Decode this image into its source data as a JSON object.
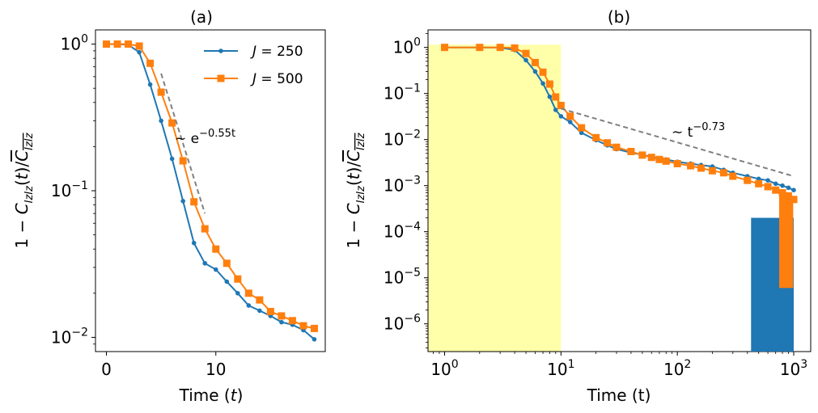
{
  "chart_data": [
    {
      "type": "line",
      "title": "(a)",
      "xlabel": "Time (t)",
      "ylabel": "1 − C_IzIz(t)/C̄_IzIz",
      "xlim": [
        -1,
        20
      ],
      "ylim": [
        0.008,
        1.25
      ],
      "yscale": "log",
      "xticks": [
        0,
        10
      ],
      "xtick_labels": [
        "0",
        "10"
      ],
      "yticks": [
        0.01,
        0.1,
        1
      ],
      "ytick_labels": [
        "10",
        "10",
        "10"
      ],
      "ytick_exponents": [
        "−2",
        "−1",
        "0"
      ],
      "legend_position": "top-right",
      "series": [
        {
          "name": "J = 250",
          "color": "#1f77b4",
          "marker": "circle",
          "x": [
            0,
            1,
            2,
            3,
            4,
            5,
            6,
            7,
            8,
            9,
            10,
            11,
            12,
            13,
            14,
            15,
            16,
            17,
            18,
            19
          ],
          "y": [
            1.0,
            1.0,
            0.99,
            0.88,
            0.53,
            0.3,
            0.165,
            0.085,
            0.044,
            0.032,
            0.029,
            0.024,
            0.02,
            0.0165,
            0.0152,
            0.014,
            0.0127,
            0.0122,
            0.0112,
            0.0097
          ]
        },
        {
          "name": "J = 500",
          "color": "#ff7f0e",
          "marker": "square",
          "x": [
            0,
            1,
            2,
            3,
            4,
            5,
            6,
            7,
            8,
            9,
            10,
            11,
            12,
            13,
            14,
            15,
            16,
            17,
            18,
            19
          ],
          "y": [
            1.0,
            1.0,
            1.0,
            0.97,
            0.74,
            0.47,
            0.29,
            0.16,
            0.084,
            0.055,
            0.04,
            0.032,
            0.025,
            0.02,
            0.018,
            0.015,
            0.014,
            0.013,
            0.012,
            0.0115
          ]
        }
      ],
      "fit_line": {
        "color": "#808080",
        "x": [
          5,
          9
        ],
        "y": [
          0.63,
          0.07
        ]
      },
      "annotation": "∼ e",
      "annotation_exp": "−0.55t"
    },
    {
      "type": "line",
      "title": "(b)",
      "xlabel": "Time (t)",
      "ylabel": "1 − C_IzIz(t)/C̄_IzIz",
      "xscale": "log",
      "yscale": "log",
      "xlim": [
        0.72,
        1400
      ],
      "ylim": [
        2.5e-07,
        2.4
      ],
      "xticks": [
        1,
        10,
        100,
        1000
      ],
      "xtick_labels": [
        "10",
        "10",
        "10",
        "10"
      ],
      "xtick_exponents": [
        "0",
        "1",
        "2",
        "3"
      ],
      "yticks": [
        1e-06,
        1e-05,
        0.0001,
        0.001,
        0.01,
        0.1,
        1
      ],
      "ytick_labels": [
        "10",
        "10",
        "10",
        "10",
        "10",
        "10",
        "10"
      ],
      "ytick_exponents": [
        "−6",
        "−5",
        "−4",
        "−3",
        "−2",
        "−1",
        "0"
      ],
      "shaded_region": {
        "x": [
          0.72,
          10
        ],
        "y": [
          2.5e-07,
          1.15
        ],
        "color": "#ffffaa"
      },
      "series": [
        {
          "name": "J = 250",
          "color": "#1f77b4",
          "marker": "circle",
          "x": [
            1,
            2,
            3,
            4,
            5,
            6,
            7,
            8,
            9,
            10,
            12,
            15,
            20,
            25,
            30,
            40,
            50,
            60,
            70,
            80,
            100,
            130,
            160,
            200,
            250,
            300,
            400,
            500,
            600,
            700,
            800,
            900,
            1000
          ],
          "y": [
            1.0,
            1.0,
            0.99,
            0.88,
            0.53,
            0.3,
            0.165,
            0.085,
            0.044,
            0.032,
            0.024,
            0.014,
            0.0097,
            0.0075,
            0.0062,
            0.0052,
            0.0047,
            0.0042,
            0.0039,
            0.0037,
            0.0033,
            0.003,
            0.0028,
            0.0026,
            0.0022,
            0.0019,
            0.0016,
            0.0014,
            0.0013,
            0.0011,
            0.001,
            0.0009,
            0.0008
          ]
        },
        {
          "name": "J = 500",
          "color": "#ff7f0e",
          "marker": "square",
          "x": [
            1,
            2,
            3,
            4,
            5,
            6,
            7,
            8,
            9,
            10,
            12,
            15,
            20,
            25,
            30,
            40,
            50,
            60,
            70,
            80,
            100,
            130,
            160,
            200,
            250,
            300,
            400,
            500,
            600,
            700,
            800,
            900,
            1000
          ],
          "y": [
            1.0,
            1.0,
            1.0,
            0.97,
            0.74,
            0.47,
            0.29,
            0.16,
            0.084,
            0.055,
            0.032,
            0.018,
            0.011,
            0.0085,
            0.0068,
            0.0055,
            0.0046,
            0.0041,
            0.0037,
            0.0034,
            0.003,
            0.0027,
            0.0024,
            0.0021,
            0.0019,
            0.0016,
            0.0013,
            0.0011,
            0.00095,
            0.0008,
            0.0007,
            0.0006,
            0.0005
          ]
        }
      ],
      "fit_line": {
        "color": "#808080",
        "x": [
          10,
          1000
        ],
        "y": [
          0.047,
          0.0016
        ]
      },
      "annotation": "∼ t",
      "annotation_exp": "−0.73"
    }
  ]
}
